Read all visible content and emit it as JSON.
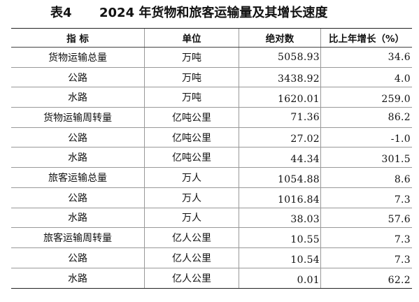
{
  "title": {
    "label": "表4",
    "text": "2024 年货物和旅客运输量及其增长速度"
  },
  "table": {
    "headers": [
      "指 标",
      "单位",
      "绝对数",
      "比上年增长（%）"
    ],
    "rows": [
      {
        "name": "货物运输总量",
        "unit": "万吨",
        "value": "5058.93",
        "growth": "34.6"
      },
      {
        "name": "公路",
        "unit": "万吨",
        "value": "3438.92",
        "growth": "4.0"
      },
      {
        "name": "水路",
        "unit": "万吨",
        "value": "1620.01",
        "growth": "259.0"
      },
      {
        "name": "货物运输周转量",
        "unit": "亿吨公里",
        "value": "71.36",
        "growth": "86.2"
      },
      {
        "name": "公路",
        "unit": "亿吨公里",
        "value": "27.02",
        "growth": "-1.0"
      },
      {
        "name": "水路",
        "unit": "亿吨公里",
        "value": "44.34",
        "growth": "301.5"
      },
      {
        "name": "旅客运输总量",
        "unit": "万人",
        "value": "1054.88",
        "growth": "8.6"
      },
      {
        "name": "公路",
        "unit": "万人",
        "value": "1016.84",
        "growth": "7.3"
      },
      {
        "name": "水路",
        "unit": "万人",
        "value": "38.03",
        "growth": "57.6"
      },
      {
        "name": "旅客运输周转量",
        "unit": "亿人公里",
        "value": "10.55",
        "growth": "7.3"
      },
      {
        "name": "公路",
        "unit": "亿人公里",
        "value": "10.54",
        "growth": "7.3"
      },
      {
        "name": "水路",
        "unit": "亿人公里",
        "value": "0.01",
        "growth": "62.2"
      }
    ]
  }
}
